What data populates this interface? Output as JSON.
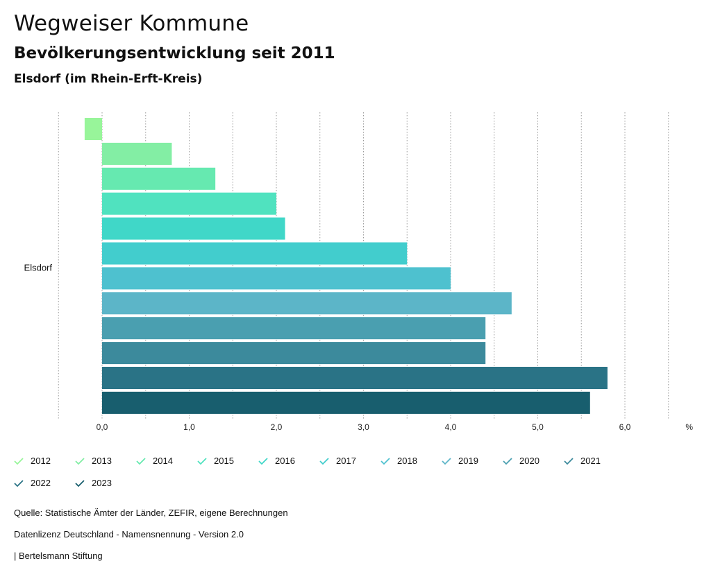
{
  "header": {
    "title": "Wegweiser Kommune",
    "subtitle": "Bevölkerungsentwicklung seit 2011",
    "region": "Elsdorf (im Rhein-Erft-Kreis)"
  },
  "chart_data": {
    "type": "bar",
    "orientation": "horizontal",
    "categories": [
      "Elsdorf"
    ],
    "xunit": "%",
    "xlim": [
      -0.5,
      6.5
    ],
    "xticks": [
      0,
      1,
      2,
      3,
      4,
      5,
      6
    ],
    "xtick_labels": [
      "0,0",
      "1,0",
      "2,0",
      "3,0",
      "4,0",
      "5,0",
      "6,0"
    ],
    "grid": "vertical dotted",
    "legend_position": "bottom",
    "series": [
      {
        "name": "2012",
        "values": [
          -0.2
        ],
        "color": "#98f59a"
      },
      {
        "name": "2013",
        "values": [
          0.8
        ],
        "color": "#83eea4"
      },
      {
        "name": "2014",
        "values": [
          1.3
        ],
        "color": "#66e9b0"
      },
      {
        "name": "2015",
        "values": [
          2.0
        ],
        "color": "#50e2bf"
      },
      {
        "name": "2016",
        "values": [
          2.1
        ],
        "color": "#40d7c8"
      },
      {
        "name": "2017",
        "values": [
          3.5
        ],
        "color": "#42cdcd"
      },
      {
        "name": "2018",
        "values": [
          4.0
        ],
        "color": "#4ec1cf"
      },
      {
        "name": "2019",
        "values": [
          4.7
        ],
        "color": "#5cb5c8"
      },
      {
        "name": "2020",
        "values": [
          4.4
        ],
        "color": "#4a9fb0"
      },
      {
        "name": "2021",
        "values": [
          4.4
        ],
        "color": "#3c8a9c"
      },
      {
        "name": "2022",
        "values": [
          5.8
        ],
        "color": "#2a7386"
      },
      {
        "name": "2023",
        "values": [
          5.6
        ],
        "color": "#185e6e"
      }
    ]
  },
  "footer": {
    "source": "Quelle: Statistische Ämter der Länder, ZEFIR, eigene Berechnungen",
    "license": "Datenlizenz Deutschland - Namensnennung - Version 2.0",
    "publisher": "| Bertelsmann Stiftung"
  }
}
